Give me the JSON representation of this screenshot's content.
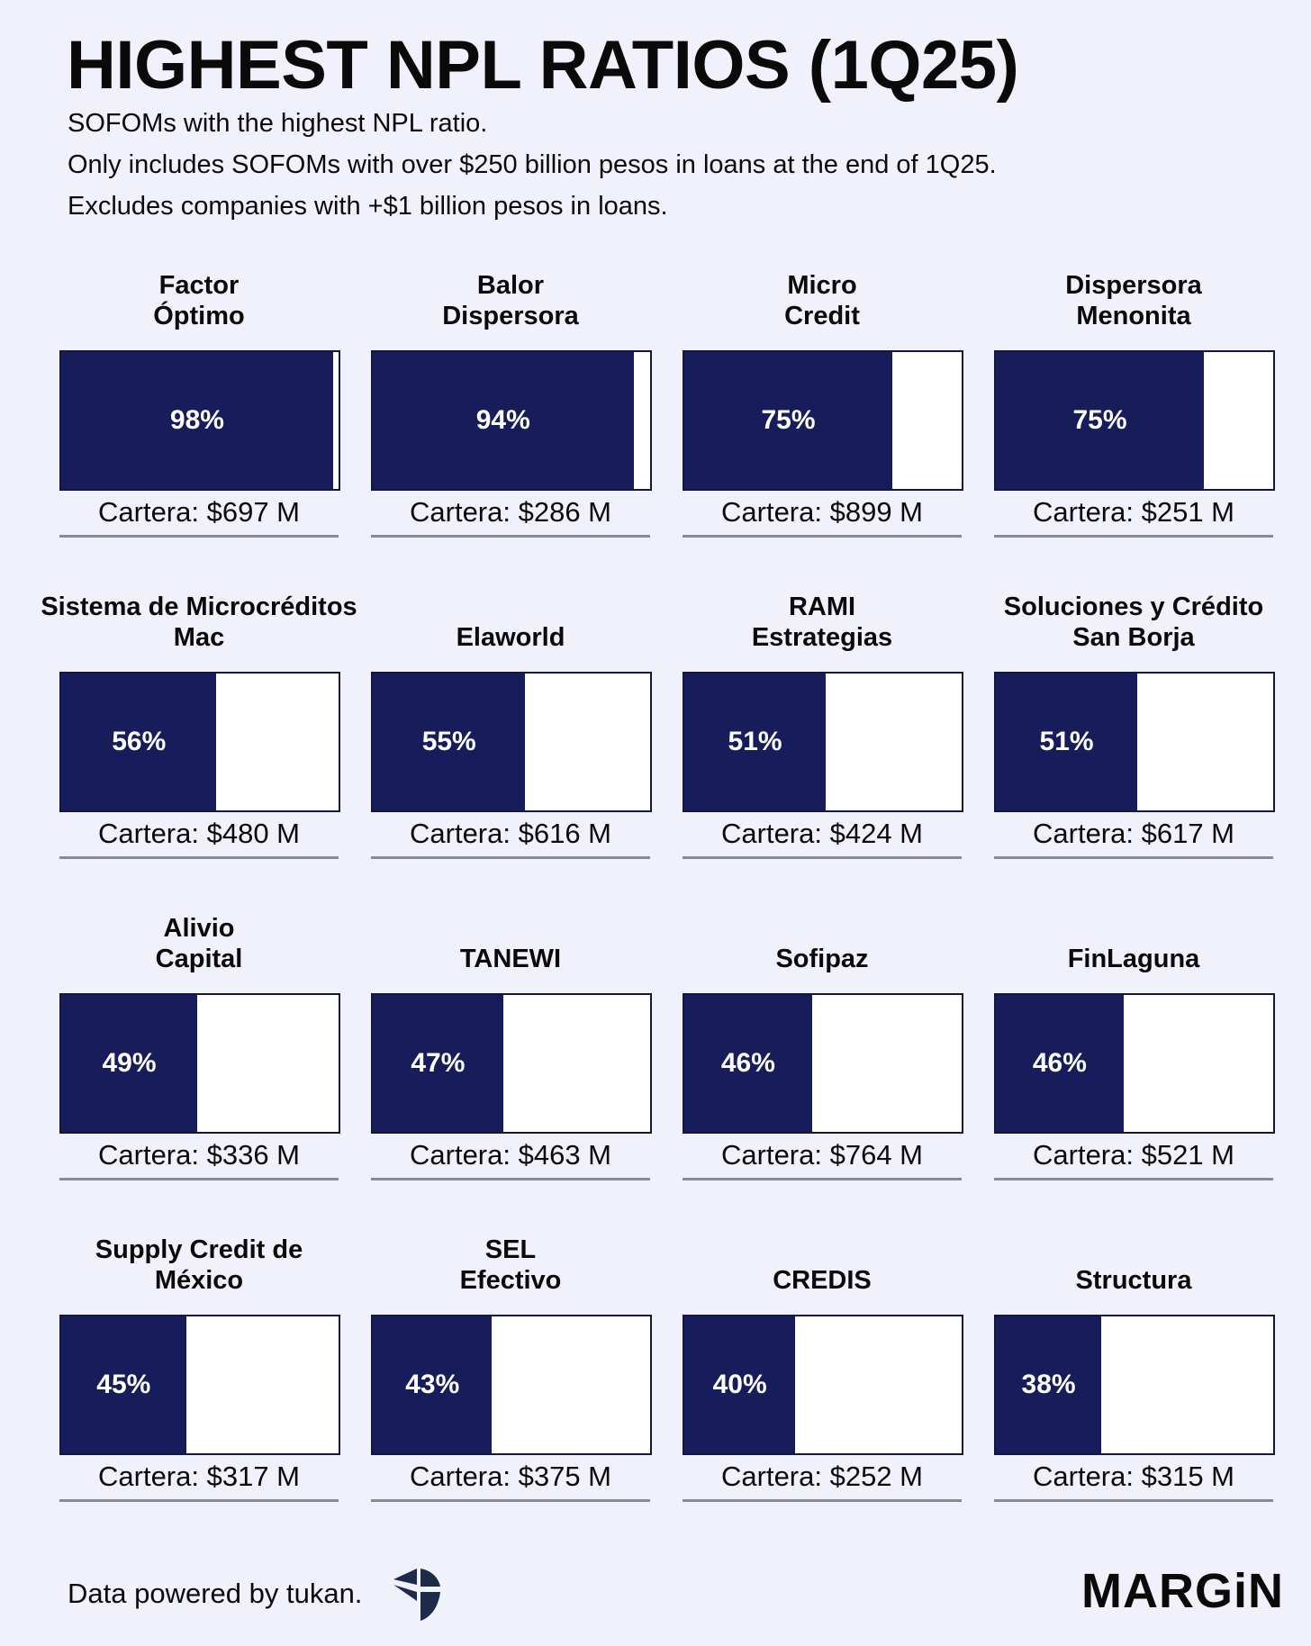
{
  "header": {
    "title": "HIGHEST NPL RATIOS (1Q25)",
    "subtitle_lines": [
      "SOFOMs with the highest NPL ratio.",
      "Only includes SOFOMs with over $250 billion pesos in loans at the end of 1Q25.",
      "Excludes companies with +$1 billion pesos in loans."
    ]
  },
  "colors": {
    "bar_fill": "#171c5a",
    "background": "#f1f1fb",
    "bar_empty": "#ffffff"
  },
  "chart_data": {
    "type": "bar",
    "title": "HIGHEST NPL RATIOS (1Q25)",
    "unit": "%",
    "ylim": [
      0,
      100
    ],
    "items": [
      {
        "name_lines": [
          "Factor",
          "Óptimo"
        ],
        "npl_pct": 98,
        "label": "98%",
        "cartera": "Cartera: $697 M"
      },
      {
        "name_lines": [
          "Balor",
          "Dispersora"
        ],
        "npl_pct": 94,
        "label": "94%",
        "cartera": "Cartera: $286 M"
      },
      {
        "name_lines": [
          "Micro",
          "Credit"
        ],
        "npl_pct": 75,
        "label": "75%",
        "cartera": "Cartera: $899 M"
      },
      {
        "name_lines": [
          "Dispersora",
          "Menonita"
        ],
        "npl_pct": 75,
        "label": "75%",
        "cartera": "Cartera: $251 M"
      },
      {
        "name_lines": [
          "Sistema de Microcréditos",
          "Mac"
        ],
        "npl_pct": 56,
        "label": "56%",
        "cartera": "Cartera: $480 M"
      },
      {
        "name_lines": [
          "Elaworld"
        ],
        "npl_pct": 55,
        "label": "55%",
        "cartera": "Cartera: $616 M"
      },
      {
        "name_lines": [
          "RAMI",
          "Estrategias"
        ],
        "npl_pct": 51,
        "label": "51%",
        "cartera": "Cartera: $424 M"
      },
      {
        "name_lines": [
          "Soluciones y Crédito",
          "San Borja"
        ],
        "npl_pct": 51,
        "label": "51%",
        "cartera": "Cartera: $617 M"
      },
      {
        "name_lines": [
          "Alivio",
          "Capital"
        ],
        "npl_pct": 49,
        "label": "49%",
        "cartera": "Cartera: $336 M"
      },
      {
        "name_lines": [
          "TANEWI"
        ],
        "npl_pct": 47,
        "label": "47%",
        "cartera": "Cartera: $463 M"
      },
      {
        "name_lines": [
          "Sofipaz"
        ],
        "npl_pct": 46,
        "label": "46%",
        "cartera": "Cartera: $764 M"
      },
      {
        "name_lines": [
          "FinLaguna"
        ],
        "npl_pct": 46,
        "label": "46%",
        "cartera": "Cartera: $521 M"
      },
      {
        "name_lines": [
          "Supply Credit de",
          "México"
        ],
        "npl_pct": 45,
        "label": "45%",
        "cartera": "Cartera: $317 M"
      },
      {
        "name_lines": [
          "SEL",
          "Efectivo"
        ],
        "npl_pct": 43,
        "label": "43%",
        "cartera": "Cartera: $375 M"
      },
      {
        "name_lines": [
          "CREDIS"
        ],
        "npl_pct": 40,
        "label": "40%",
        "cartera": "Cartera: $252 M"
      },
      {
        "name_lines": [
          "Structura"
        ],
        "npl_pct": 38,
        "label": "38%",
        "cartera": "Cartera: $315 M"
      }
    ]
  },
  "footer": {
    "credit": "Data powered by tukan.",
    "credit_logo_icon": "tukan-logo-icon",
    "brand": "MARGiN"
  }
}
